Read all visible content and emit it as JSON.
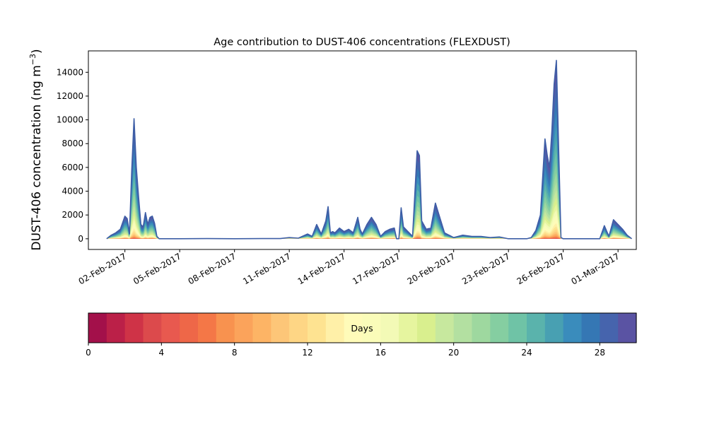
{
  "chart_data": {
    "type": "area",
    "title": "Age contribution to DUST-406 concentrations (FLEXDUST)",
    "xlabel": "",
    "ylabel": "DUST-406 concentration (ng m⁻³)",
    "ylabel_main": "DUST-406 concentration (ng m",
    "ylabel_sup": "−3",
    "ylabel_end": ")",
    "xlim": [
      "2017-01-31",
      "2017-03-02"
    ],
    "ylim": [
      -900,
      15800
    ],
    "x_ticks": [
      "02-Feb-2017",
      "05-Feb-2017",
      "08-Feb-2017",
      "11-Feb-2017",
      "14-Feb-2017",
      "17-Feb-2017",
      "20-Feb-2017",
      "23-Feb-2017",
      "26-Feb-2017",
      "01-Mar-2017"
    ],
    "y_ticks": [
      "0",
      "2000",
      "4000",
      "6000",
      "8000",
      "10000",
      "12000",
      "14000"
    ],
    "stacked_by": "Days",
    "age_bins": 30,
    "series_total": {
      "x": [
        "2017-02-01 00:00",
        "2017-02-01 06:00",
        "2017-02-01 12:00",
        "2017-02-01 18:00",
        "2017-02-02 00:00",
        "2017-02-02 03:00",
        "2017-02-02 06:00",
        "2017-02-02 09:00",
        "2017-02-02 12:00",
        "2017-02-02 15:00",
        "2017-02-02 18:00",
        "2017-02-02 21:00",
        "2017-02-03 00:00",
        "2017-02-03 03:00",
        "2017-02-03 06:00",
        "2017-02-03 09:00",
        "2017-02-03 12:00",
        "2017-02-03 15:00",
        "2017-02-03 18:00",
        "2017-02-03 21:00",
        "2017-02-04 00:00",
        "2017-02-04 06:00",
        "2017-02-04 12:00",
        "2017-02-05 00:00",
        "2017-02-06 12:00",
        "2017-02-08 00:00",
        "2017-02-09 12:00",
        "2017-02-10 12:00",
        "2017-02-11 00:00",
        "2017-02-11 12:00",
        "2017-02-12 00:00",
        "2017-02-12 06:00",
        "2017-02-12 12:00",
        "2017-02-12 18:00",
        "2017-02-13 00:00",
        "2017-02-13 03:00",
        "2017-02-13 06:00",
        "2017-02-13 09:00",
        "2017-02-13 12:00",
        "2017-02-13 18:00",
        "2017-02-14 00:00",
        "2017-02-14 06:00",
        "2017-02-14 12:00",
        "2017-02-14 18:00",
        "2017-02-14 21:00",
        "2017-02-15 00:00",
        "2017-02-15 06:00",
        "2017-02-15 12:00",
        "2017-02-15 18:00",
        "2017-02-16 00:00",
        "2017-02-16 06:00",
        "2017-02-16 12:00",
        "2017-02-16 18:00",
        "2017-02-16 21:00",
        "2017-02-17 00:00",
        "2017-02-17 03:00",
        "2017-02-17 06:00",
        "2017-02-17 12:00",
        "2017-02-17 18:00",
        "2017-02-18 00:00",
        "2017-02-18 03:00",
        "2017-02-18 06:00",
        "2017-02-18 12:00",
        "2017-02-18 18:00",
        "2017-02-19 00:00",
        "2017-02-19 12:00",
        "2017-02-20 00:00",
        "2017-02-20 12:00",
        "2017-02-21 00:00",
        "2017-02-21 12:00",
        "2017-02-22 00:00",
        "2017-02-22 12:00",
        "2017-02-23 00:00",
        "2017-02-23 12:00",
        "2017-02-24 00:00",
        "2017-02-24 06:00",
        "2017-02-24 12:00",
        "2017-02-24 18:00",
        "2017-02-25 00:00",
        "2017-02-25 03:00",
        "2017-02-25 06:00",
        "2017-02-25 09:00",
        "2017-02-25 12:00",
        "2017-02-25 15:00",
        "2017-02-25 18:00",
        "2017-02-25 21:00",
        "2017-02-26 00:00",
        "2017-02-26 06:00",
        "2017-02-26 12:00",
        "2017-02-27 00:00",
        "2017-02-27 12:00",
        "2017-02-28 00:00",
        "2017-02-28 06:00",
        "2017-02-28 12:00",
        "2017-02-28 18:00",
        "2017-03-01 00:00",
        "2017-03-01 06:00",
        "2017-03-01 12:00",
        "2017-03-01 18:00"
      ],
      "y": [
        0,
        300,
        500,
        800,
        1900,
        1700,
        400,
        5800,
        10100,
        6000,
        3500,
        1200,
        1000,
        2200,
        1200,
        1800,
        1900,
        1300,
        200,
        0,
        0,
        0,
        0,
        0,
        20,
        0,
        20,
        20,
        100,
        50,
        400,
        200,
        1200,
        400,
        1500,
        2700,
        500,
        600,
        500,
        900,
        600,
        800,
        500,
        1800,
        800,
        400,
        1200,
        1800,
        1200,
        200,
        600,
        800,
        900,
        0,
        0,
        2600,
        1000,
        600,
        200,
        7400,
        7000,
        1500,
        800,
        900,
        3000,
        500,
        100,
        300,
        200,
        200,
        100,
        150,
        0,
        0,
        0,
        100,
        700,
        2000,
        8400,
        7000,
        6000,
        9000,
        13000,
        15000,
        7500,
        100,
        0,
        0,
        0,
        0,
        0,
        0,
        1100,
        200,
        1600,
        1200,
        800,
        300,
        0
      ]
    },
    "colorbar": {
      "label": "Days",
      "range": [
        0,
        30
      ],
      "ticks": [
        "0",
        "4",
        "8",
        "12",
        "16",
        "20",
        "24",
        "28"
      ],
      "colors": [
        "#a3104a",
        "#bb2048",
        "#cf3347",
        "#dc4a4c",
        "#e8594f",
        "#ee6748",
        "#f47747",
        "#f8924f",
        "#fba35b",
        "#fdb465",
        "#fdc678",
        "#fed685",
        "#fee391",
        "#fff0a8",
        "#fffbb9",
        "#fafcb9",
        "#f3fab6",
        "#e6f59f",
        "#d9ef8e",
        "#c7e89e",
        "#b3e0a1",
        "#9ed89f",
        "#85ceA1",
        "#6fc3a6",
        "#5ab3ac",
        "#48a0b2",
        "#3a8cbc",
        "#3577b4",
        "#4664ad",
        "#5a53a3"
      ],
      "outline": "#3d5ea6"
    }
  }
}
